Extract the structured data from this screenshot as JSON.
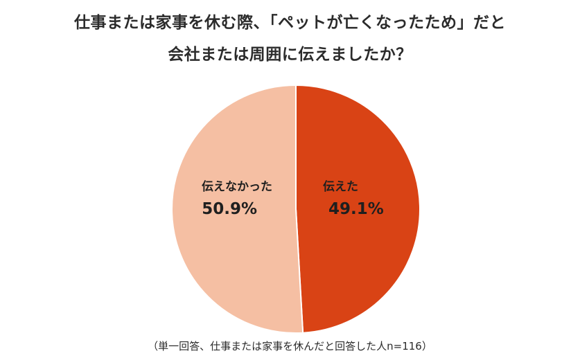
{
  "title_line1": "仕事または家事を休む際、「ペットが亡くなったため」だと",
  "title_line2": "会社または周囲に伝えましたか？",
  "note": "（単一回答、仕事または家事を休んだと回答した人n=116）",
  "chart_data": {
    "type": "pie",
    "title": "仕事または家事を休む際、「ペットが亡くなったため」だと会社または周囲に伝えましたか？",
    "unit": "%",
    "slices": [
      {
        "label": "伝えた",
        "value": 49.1,
        "value_label": "49.1%",
        "color": "#d94315"
      },
      {
        "label": "伝えなかった",
        "value": 50.9,
        "value_label": "50.9%",
        "color": "#f5bfa3"
      }
    ],
    "start": "12 o'clock",
    "direction": "clockwise"
  }
}
